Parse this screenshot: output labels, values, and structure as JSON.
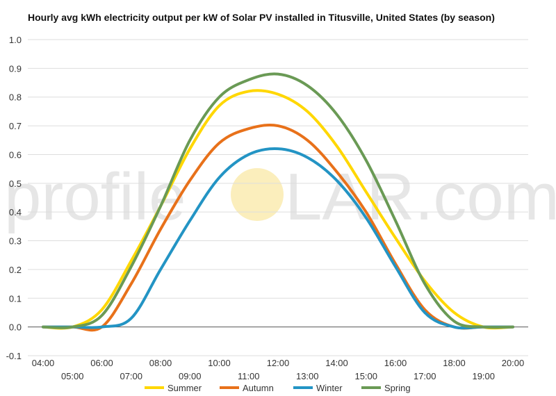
{
  "chart_data": {
    "type": "line",
    "title": "Hourly avg kWh electricity output per kW of Solar PV installed in Titusville, United States (by season)",
    "xlabel": "",
    "ylabel": "",
    "x_ticks_upper": [
      "04:00",
      "06:00",
      "08:00",
      "10:00",
      "12:00",
      "14:00",
      "16:00",
      "18:00",
      "20:00"
    ],
    "x_ticks_lower": [
      "05:00",
      "07:00",
      "09:00",
      "11:00",
      "13:00",
      "15:00",
      "17:00",
      "19:00"
    ],
    "x": [
      "04:00",
      "05:00",
      "06:00",
      "07:00",
      "08:00",
      "09:00",
      "10:00",
      "11:00",
      "12:00",
      "13:00",
      "14:00",
      "15:00",
      "16:00",
      "17:00",
      "18:00",
      "19:00",
      "20:00"
    ],
    "ylim": [
      -0.1,
      1.0
    ],
    "y_ticks": [
      "1.0",
      "0.9",
      "0.8",
      "0.7",
      "0.6",
      "0.5",
      "0.4",
      "0.3",
      "0.2",
      "0.1",
      "0.0",
      "-0.1"
    ],
    "grid": true,
    "legend_position": "bottom",
    "series": [
      {
        "name": "Summer",
        "color": "#ffd700",
        "values": [
          0.0,
          0.0,
          0.06,
          0.23,
          0.42,
          0.62,
          0.77,
          0.82,
          0.81,
          0.75,
          0.63,
          0.47,
          0.31,
          0.16,
          0.05,
          0.0,
          0.0
        ]
      },
      {
        "name": "Autumn",
        "color": "#e8711a",
        "values": [
          0.0,
          0.0,
          0.0,
          0.15,
          0.34,
          0.51,
          0.64,
          0.69,
          0.7,
          0.65,
          0.54,
          0.4,
          0.22,
          0.06,
          0.0,
          0.0,
          0.0
        ]
      },
      {
        "name": "Winter",
        "color": "#2394c4",
        "values": [
          0.0,
          0.0,
          0.0,
          0.03,
          0.2,
          0.37,
          0.52,
          0.6,
          0.62,
          0.59,
          0.51,
          0.38,
          0.21,
          0.05,
          0.0,
          0.0,
          0.0
        ]
      },
      {
        "name": "Spring",
        "color": "#6a9a55",
        "values": [
          0.0,
          0.0,
          0.04,
          0.21,
          0.42,
          0.65,
          0.8,
          0.86,
          0.88,
          0.84,
          0.74,
          0.58,
          0.37,
          0.15,
          0.02,
          0.0,
          0.0
        ]
      }
    ]
  },
  "watermark": {
    "text_left": "profile",
    "text_right": "LAR.com",
    "sun_color": "#fbeebc"
  }
}
